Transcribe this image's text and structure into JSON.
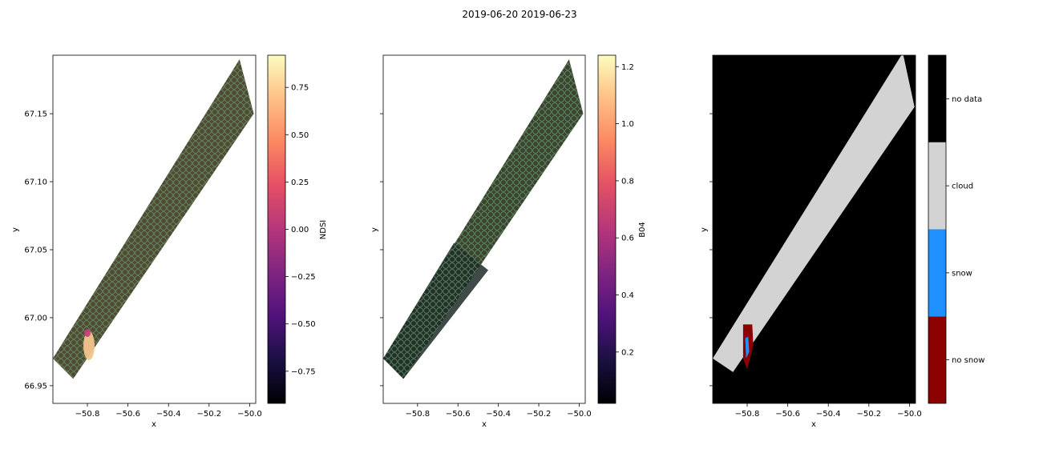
{
  "figure": {
    "suptitle": "2019-06-20 2019-06-23"
  },
  "chart_data": [
    {
      "type": "scatter",
      "xlabel": "x",
      "ylabel": "y",
      "xlim": [
        -50.97,
        -49.97
      ],
      "ylim": [
        66.937,
        67.193
      ],
      "xticks": [
        {
          "value": -50.8,
          "label": "−50.8"
        },
        {
          "value": -50.6,
          "label": "−50.6"
        },
        {
          "value": -50.4,
          "label": "−50.4"
        },
        {
          "value": -50.2,
          "label": "−50.2"
        },
        {
          "value": -50.0,
          "label": "−50.0"
        }
      ],
      "yticks": [
        {
          "value": 66.95,
          "label": "66.95"
        },
        {
          "value": 67.0,
          "label": "67.00"
        },
        {
          "value": 67.05,
          "label": "67.05"
        },
        {
          "value": 67.1,
          "label": "67.10"
        },
        {
          "value": 67.15,
          "label": "67.15"
        }
      ],
      "swath": [
        [
          -50.97,
          66.97
        ],
        [
          -50.05,
          67.19
        ],
        [
          -49.98,
          67.15
        ],
        [
          -50.87,
          66.955
        ]
      ],
      "colorbar": {
        "label": "NDSI",
        "colormap": "magma",
        "range": [
          -0.92,
          0.92
        ],
        "ticks": [
          {
            "value": 0.75,
            "label": "0.75"
          },
          {
            "value": 0.5,
            "label": "0.50"
          },
          {
            "value": 0.25,
            "label": "0.25"
          },
          {
            "value": 0.0,
            "label": "0.00"
          },
          {
            "value": -0.25,
            "label": "−0.25"
          },
          {
            "value": -0.5,
            "label": "−0.50"
          },
          {
            "value": -0.75,
            "label": "−0.75"
          }
        ]
      },
      "colors": {
        "ground": "#4f4a33",
        "marker_edge": "#5f9e6a",
        "highlight": "#f3c48d"
      }
    },
    {
      "type": "scatter",
      "xlabel": "x",
      "ylabel": "y",
      "xlim": [
        -50.97,
        -49.97
      ],
      "ylim": [
        66.937,
        67.193
      ],
      "xticks": [
        {
          "value": -50.8,
          "label": "−50.8"
        },
        {
          "value": -50.6,
          "label": "−50.6"
        },
        {
          "value": -50.4,
          "label": "−50.4"
        },
        {
          "value": -50.2,
          "label": "−50.2"
        },
        {
          "value": -50.0,
          "label": "−50.0"
        }
      ],
      "yticks": [
        66.95,
        67.0,
        67.05,
        67.1,
        67.15
      ],
      "swath": [
        [
          -50.97,
          66.97
        ],
        [
          -50.05,
          67.19
        ],
        [
          -49.98,
          67.15
        ],
        [
          -50.87,
          66.955
        ]
      ],
      "colorbar": {
        "label": "B04",
        "colormap": "magma",
        "range": [
          0.02,
          1.24
        ],
        "ticks": [
          {
            "value": 1.2,
            "label": "1.2"
          },
          {
            "value": 1.0,
            "label": "1.0"
          },
          {
            "value": 0.8,
            "label": "0.8"
          },
          {
            "value": 0.6,
            "label": "0.6"
          },
          {
            "value": 0.4,
            "label": "0.4"
          },
          {
            "value": 0.2,
            "label": "0.2"
          }
        ]
      },
      "colors": {
        "ground": "#3a4330",
        "marker_edge": "#5f9e6a",
        "dark_shade": "#1f2a28"
      }
    },
    {
      "type": "heatmap",
      "xlabel": "x",
      "ylabel": "y",
      "xlim": [
        -50.97,
        -49.97
      ],
      "ylim": [
        66.937,
        67.193
      ],
      "xticks": [
        {
          "value": -50.8,
          "label": "−50.8"
        },
        {
          "value": -50.6,
          "label": "−50.6"
        },
        {
          "value": -50.4,
          "label": "−50.4"
        },
        {
          "value": -50.2,
          "label": "−50.2"
        },
        {
          "value": -50.0,
          "label": "−50.0"
        }
      ],
      "yticks": [
        66.95,
        67.0,
        67.05,
        67.1,
        67.15
      ],
      "cloud_region": [
        [
          -50.97,
          66.97
        ],
        [
          -50.04,
          67.193
        ],
        [
          -50.03,
          67.193
        ],
        [
          -49.975,
          67.155
        ],
        [
          -50.87,
          66.96
        ]
      ],
      "no_snow_region": [
        [
          -50.82,
          66.995
        ],
        [
          -50.775,
          66.995
        ],
        [
          -50.77,
          66.98
        ],
        [
          -50.8,
          66.962
        ],
        [
          -50.82,
          66.97
        ]
      ],
      "snow_region": [
        [
          -50.81,
          66.985
        ],
        [
          -50.795,
          66.986
        ],
        [
          -50.79,
          66.975
        ],
        [
          -50.805,
          66.97
        ]
      ],
      "classes": [
        {
          "label": "no snow",
          "color": "#8b0000"
        },
        {
          "label": "snow",
          "color": "#1e90ff"
        },
        {
          "label": "cloud",
          "color": "#d3d3d3"
        },
        {
          "label": "no data",
          "color": "#000000"
        }
      ]
    }
  ]
}
